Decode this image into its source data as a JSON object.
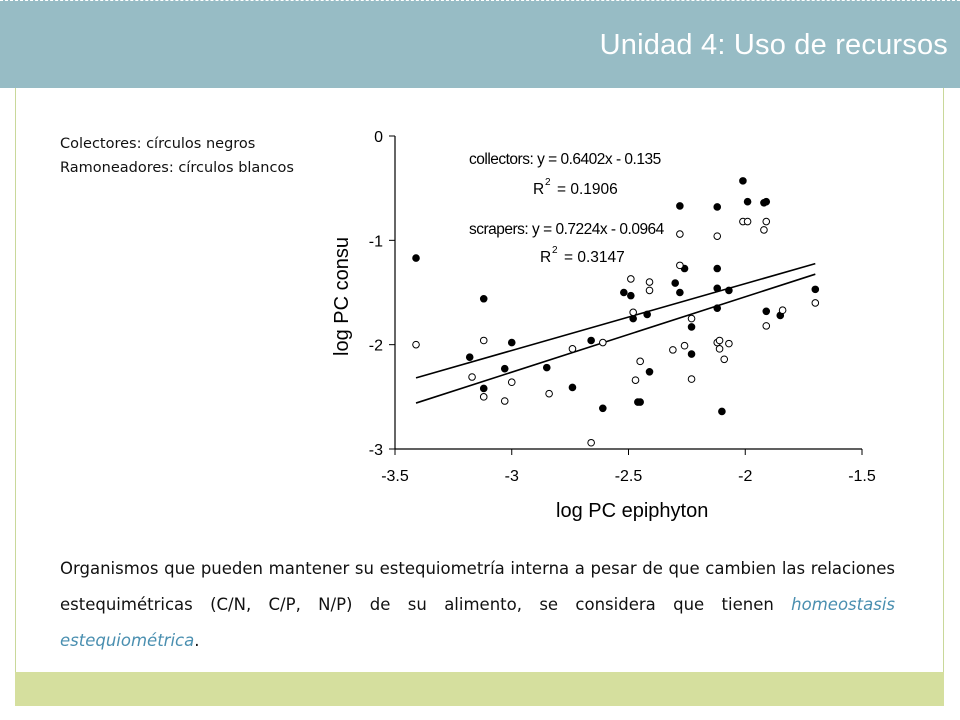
{
  "header": {
    "title": "Unidad 4: Uso de recursos"
  },
  "legend_note": {
    "line1": "Colectores: círculos negros",
    "line2": "Ramoneadores: círculos blancos"
  },
  "caption": {
    "text_before": "Organismos que pueden mantener su estequiometría interna a pesar de que cambien las relaciones estequimétricas (C/N, C/P, N/P) de su alimento, se considera que tienen ",
    "emphasis": "homeostasis estequiométrica",
    "text_after": "."
  },
  "colors": {
    "header": "#97bcc5",
    "footer": "#d5df9e",
    "frame": "#c9d89a",
    "emphasis": "#4a8fb0"
  },
  "chart_data": {
    "type": "scatter",
    "xlabel": "log PC epiphyton",
    "ylabel": "log PC consu",
    "xlim": [
      -3.5,
      -1.5
    ],
    "ylim": [
      -3,
      0
    ],
    "xticks": [
      "-3.5",
      "-3",
      "-2.5",
      "-2",
      "-1.5"
    ],
    "yticks": [
      "0",
      "-1",
      "-2",
      "-3"
    ],
    "grid": false,
    "annotations": {
      "collectors_eq": "collectors: y = 0.6402x - 0.135",
      "collectors_r2_prefix": "R",
      "collectors_r2_sup": "2",
      "collectors_r2_value": "= 0.1906",
      "scrapers_eq": "scrapers: y = 0.7224x - 0.0964",
      "scrapers_r2_prefix": "R",
      "scrapers_r2_sup": "2",
      "scrapers_r2_value": "= 0.3147"
    },
    "series": [
      {
        "marker": "filled",
        "points": [
          [
            -3.41,
            -1.17
          ],
          [
            -3.18,
            -2.12
          ],
          [
            -3.12,
            -1.56
          ],
          [
            -3.12,
            -2.42
          ],
          [
            -3.03,
            -2.23
          ],
          [
            -3.0,
            -1.98
          ],
          [
            -2.85,
            -2.22
          ],
          [
            -2.74,
            -2.41
          ],
          [
            -2.66,
            -1.96
          ],
          [
            -2.61,
            -2.61
          ],
          [
            -2.52,
            -1.5
          ],
          [
            -2.49,
            -1.53
          ],
          [
            -2.48,
            -1.75
          ],
          [
            -2.46,
            -2.55
          ],
          [
            -2.45,
            -2.55
          ],
          [
            -2.42,
            -1.71
          ],
          [
            -2.41,
            -2.26
          ],
          [
            -2.3,
            -1.41
          ],
          [
            -2.28,
            -0.67
          ],
          [
            -2.28,
            -1.5
          ],
          [
            -2.26,
            -1.27
          ],
          [
            -2.23,
            -1.83
          ],
          [
            -2.23,
            -2.09
          ],
          [
            -2.12,
            -0.68
          ],
          [
            -2.12,
            -1.27
          ],
          [
            -2.12,
            -1.46
          ],
          [
            -2.12,
            -1.65
          ],
          [
            -2.1,
            -2.64
          ],
          [
            -2.07,
            -1.48
          ],
          [
            -2.01,
            -0.43
          ],
          [
            -1.99,
            -0.63
          ],
          [
            -1.92,
            -0.64
          ],
          [
            -1.91,
            -0.63
          ],
          [
            -1.91,
            -1.68
          ],
          [
            -1.85,
            -1.72
          ],
          [
            -1.7,
            -1.47
          ]
        ]
      },
      {
        "marker": "open",
        "points": [
          [
            -3.41,
            -2.0
          ],
          [
            -3.17,
            -2.31
          ],
          [
            -3.12,
            -1.96
          ],
          [
            -3.12,
            -2.5
          ],
          [
            -3.03,
            -2.54
          ],
          [
            -3.0,
            -2.36
          ],
          [
            -2.84,
            -2.47
          ],
          [
            -2.74,
            -2.04
          ],
          [
            -2.66,
            -2.94
          ],
          [
            -2.61,
            -1.98
          ],
          [
            -2.49,
            -1.37
          ],
          [
            -2.48,
            -1.69
          ],
          [
            -2.47,
            -2.34
          ],
          [
            -2.45,
            -2.16
          ],
          [
            -2.41,
            -1.4
          ],
          [
            -2.41,
            -1.48
          ],
          [
            -2.31,
            -2.05
          ],
          [
            -2.28,
            -0.94
          ],
          [
            -2.28,
            -1.24
          ],
          [
            -2.26,
            -2.01
          ],
          [
            -2.23,
            -1.75
          ],
          [
            -2.23,
            -2.33
          ],
          [
            -2.12,
            -0.96
          ],
          [
            -2.12,
            -1.98
          ],
          [
            -2.11,
            -1.96
          ],
          [
            -2.11,
            -2.04
          ],
          [
            -2.09,
            -2.14
          ],
          [
            -2.07,
            -1.99
          ],
          [
            -2.01,
            -0.82
          ],
          [
            -1.99,
            -0.82
          ],
          [
            -1.92,
            -0.9
          ],
          [
            -1.91,
            -0.82
          ],
          [
            -1.91,
            -1.82
          ],
          [
            -1.84,
            -1.67
          ],
          [
            -1.7,
            -1.6
          ]
        ]
      }
    ],
    "lines": [
      {
        "name": "collectors",
        "slope": 0.6402,
        "intercept": -0.135,
        "x_range": [
          -3.41,
          -1.7
        ]
      },
      {
        "name": "scrapers",
        "slope": 0.7224,
        "intercept": -0.0964,
        "x_range": [
          -3.41,
          -1.7
        ]
      }
    ]
  }
}
